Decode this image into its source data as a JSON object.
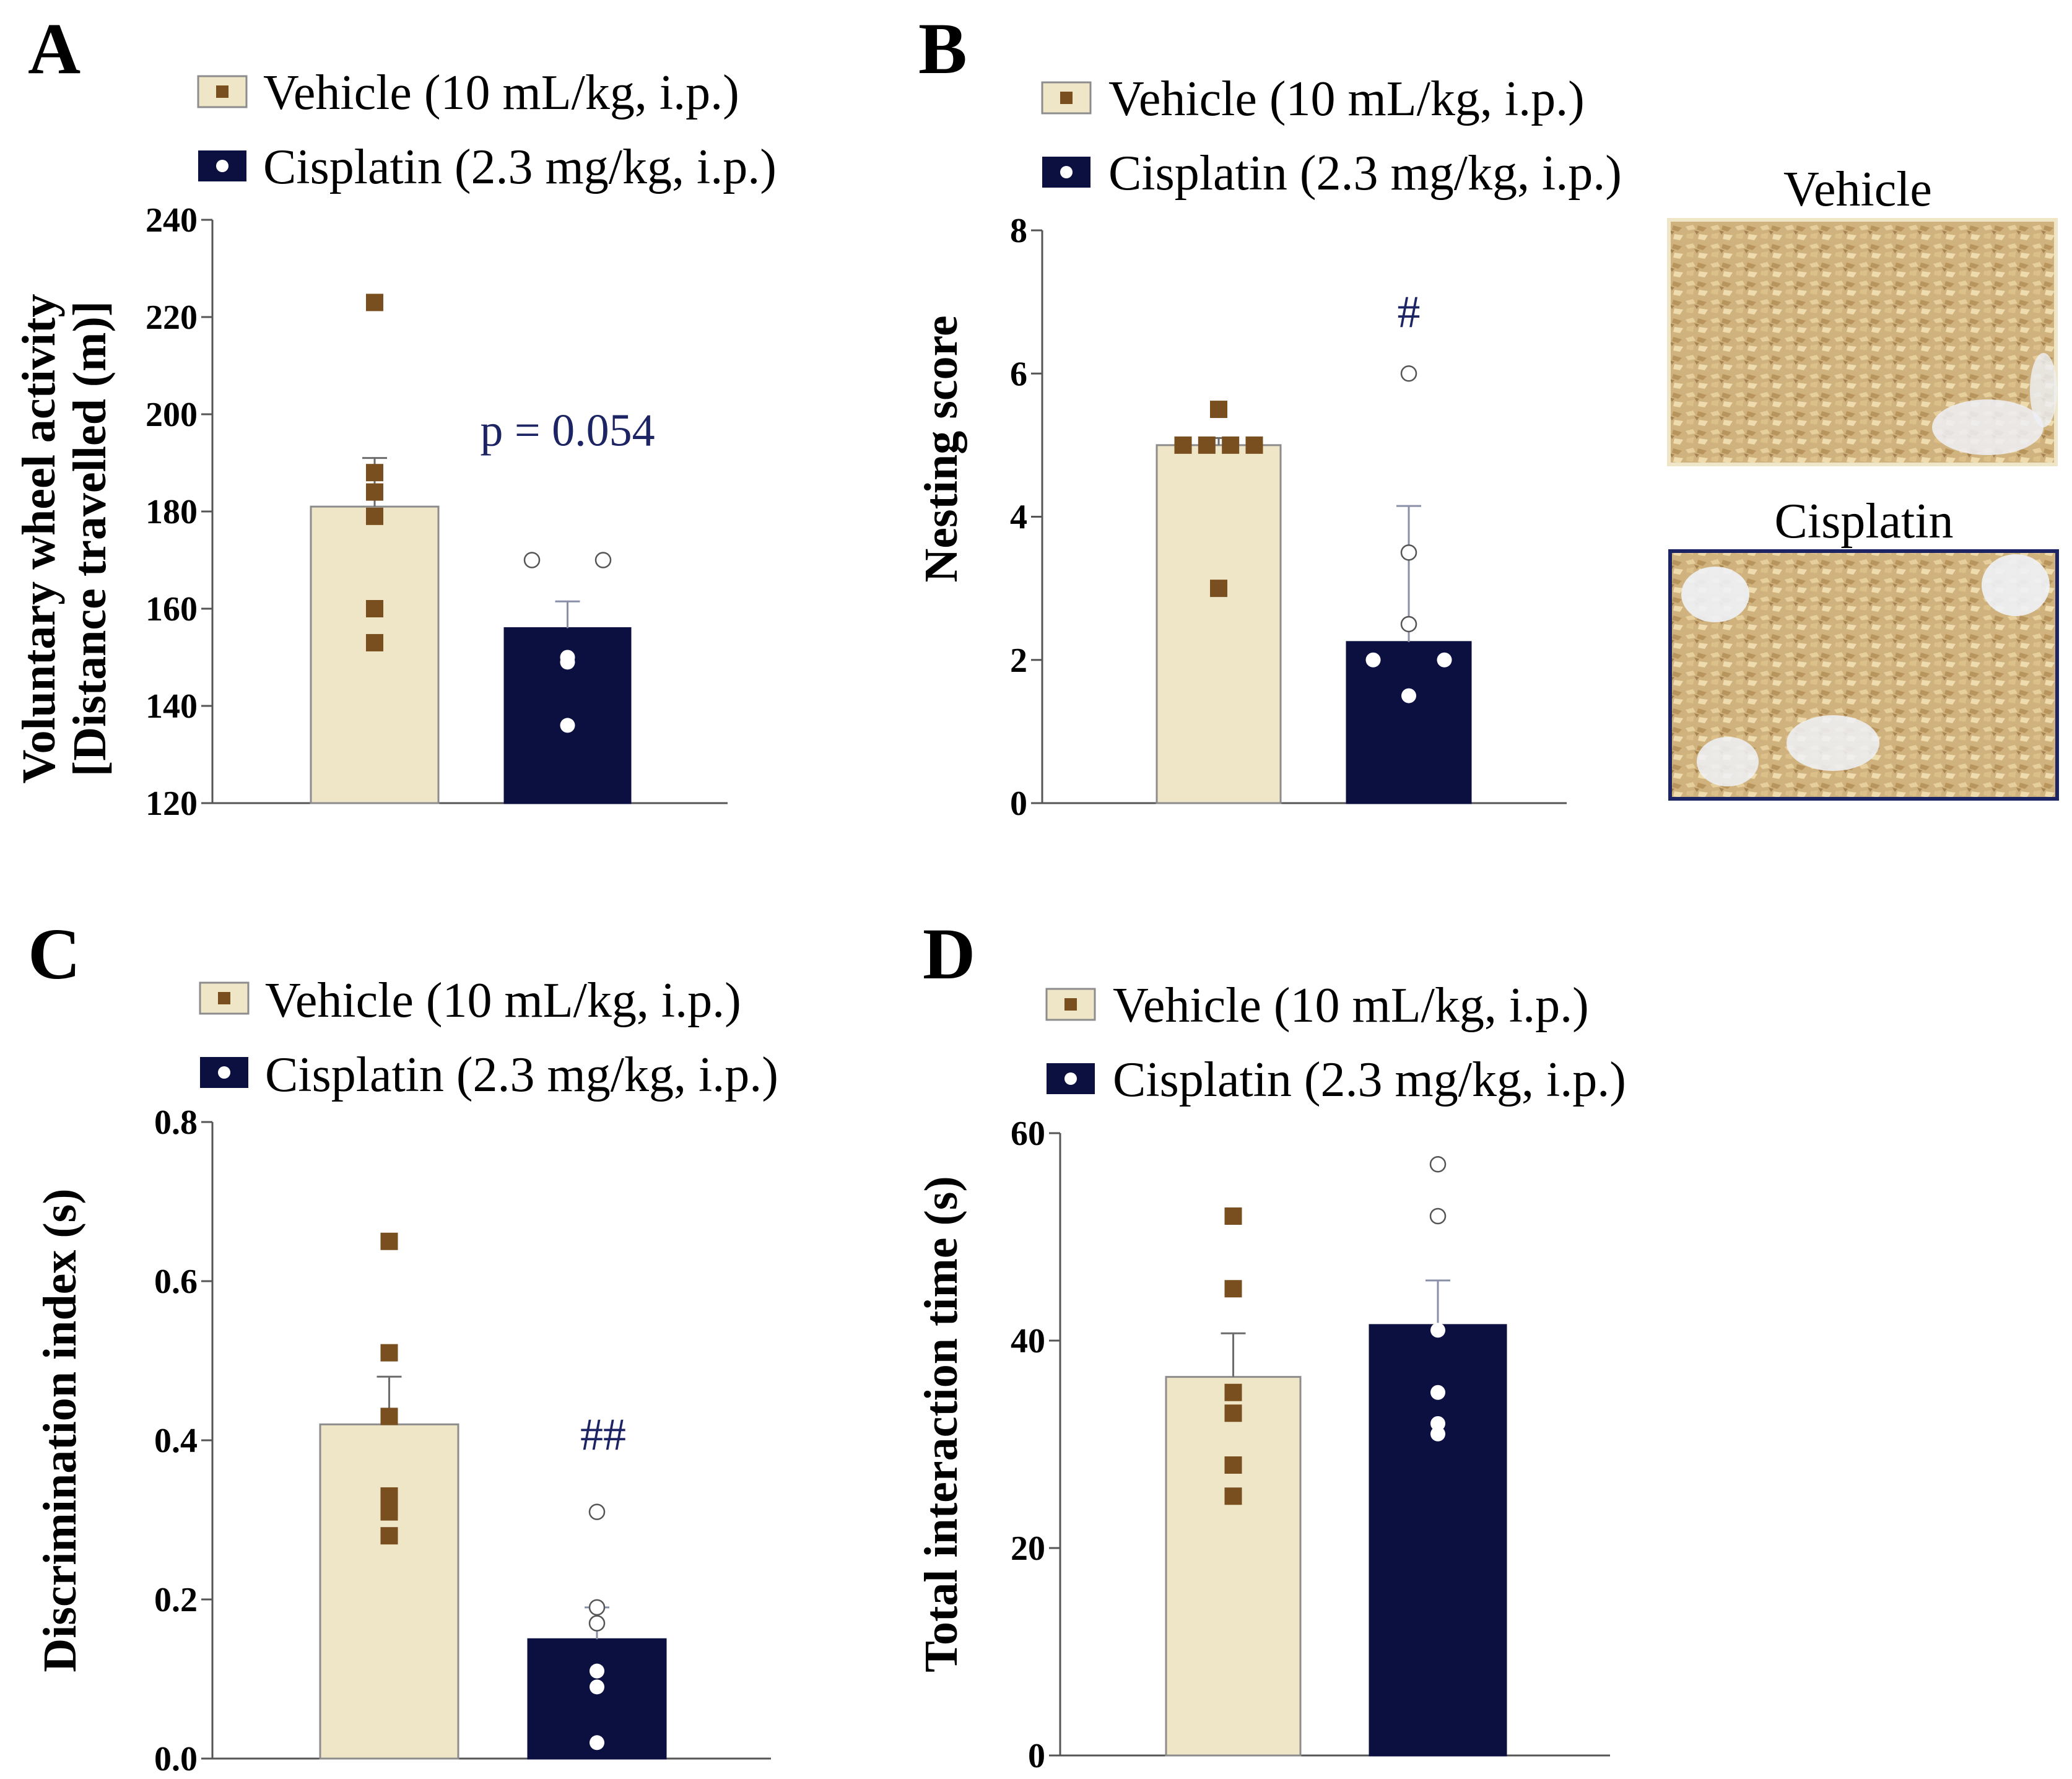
{
  "colors": {
    "vehicle_fill": "#efe6c8",
    "vehicle_stroke": "#8c8c8c",
    "vehicle_marker": "#7a4f1f",
    "cisplatin_fill": "#0b1040",
    "cisplatin_stroke": "#0b1040",
    "annotation": "#1c2463"
  },
  "legend": {
    "vehicle_label": "Vehicle (10 mL/kg, i.p.)",
    "cisplatin_label": "Cisplatin (2.3 mg/kg, i.p.)"
  },
  "photos": {
    "vehicle_title": "Vehicle",
    "cisplatin_title": "Cisplatin"
  },
  "chart_data": [
    {
      "panel": "A",
      "type": "bar",
      "ylabel_line1": "Voluntary wheel activity",
      "ylabel_line2": "[Distance travelled (m)]",
      "ylim": [
        120,
        240
      ],
      "yticks": [
        120,
        140,
        160,
        180,
        200,
        220,
        240
      ],
      "ytick_labels": [
        "120",
        "140",
        "160",
        "180",
        "200",
        "220",
        "240"
      ],
      "categories": [
        "Vehicle",
        "Cisplatin"
      ],
      "values": [
        181,
        156
      ],
      "sem": [
        10,
        5.5
      ],
      "points": [
        [
          223,
          188,
          184,
          179,
          160,
          153
        ],
        [
          170,
          170,
          150,
          149,
          136
        ]
      ],
      "annotation": "p = 0.054"
    },
    {
      "panel": "B",
      "type": "bar",
      "ylabel": "Nesting score",
      "ylim": [
        0,
        8
      ],
      "yticks": [
        0,
        2,
        4,
        6,
        8
      ],
      "ytick_labels": [
        "0",
        "2",
        "4",
        "6",
        "8"
      ],
      "categories": [
        "Vehicle",
        "Cisplatin"
      ],
      "values": [
        5,
        2.25
      ],
      "sem": [
        0.1,
        1.9
      ],
      "points": [
        [
          5.5,
          5,
          5,
          5,
          5,
          3
        ],
        [
          6,
          3.5,
          2.5,
          2,
          2,
          1.5
        ]
      ],
      "annotation": "#"
    },
    {
      "panel": "C",
      "type": "bar",
      "ylabel": "Discrimination index (s)",
      "ylim": [
        0,
        0.8
      ],
      "yticks": [
        0,
        0.2,
        0.4,
        0.6,
        0.8
      ],
      "ytick_labels": [
        "0.0",
        "0.2",
        "0.4",
        "0.6",
        "0.8"
      ],
      "categories": [
        "Vehicle",
        "Cisplatin"
      ],
      "values": [
        0.42,
        0.15
      ],
      "sem": [
        0.06,
        0.04
      ],
      "points": [
        [
          0.65,
          0.51,
          0.43,
          0.33,
          0.31,
          0.28
        ],
        [
          0.31,
          0.19,
          0.17,
          0.11,
          0.09,
          0.02
        ]
      ],
      "annotation": "##"
    },
    {
      "panel": "D",
      "type": "bar",
      "ylabel": "Total interaction time (s)",
      "ylim": [
        0,
        60
      ],
      "yticks": [
        0,
        20,
        40,
        60
      ],
      "ytick_labels": [
        "0",
        "20",
        "40",
        "60"
      ],
      "categories": [
        "Vehicle",
        "Cisplatin"
      ],
      "values": [
        36.5,
        41.5
      ],
      "sem": [
        4.2,
        4.3
      ],
      "points": [
        [
          52,
          45,
          35,
          33,
          28,
          25
        ],
        [
          57,
          52,
          41,
          35,
          32,
          31
        ]
      ],
      "annotation": ""
    }
  ]
}
